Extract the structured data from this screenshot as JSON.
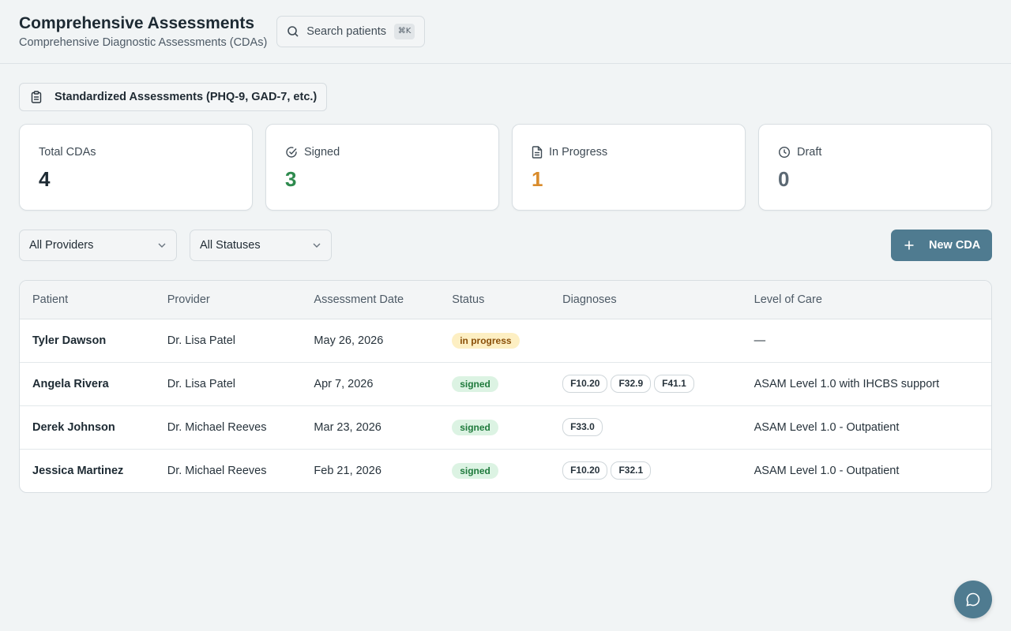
{
  "header": {
    "title": "Comprehensive Assessments",
    "subtitle": "Comprehensive Diagnostic Assessments (CDAs)",
    "search_placeholder": "Search patients",
    "search_shortcut": "⌘K"
  },
  "standardized_button": {
    "label": "Standardized Assessments (PHQ-9, GAD-7, etc.)"
  },
  "stats": [
    {
      "label": "Total CDAs",
      "value": "4",
      "color": "#1d2a33"
    },
    {
      "label": "Signed",
      "value": "3",
      "color": "#2e8a4e",
      "icon": "check-circle-icon"
    },
    {
      "label": "In Progress",
      "value": "1",
      "color": "#d98b2b",
      "icon": "document-icon"
    },
    {
      "label": "Draft",
      "value": "0",
      "color": "#5b6873",
      "icon": "clock-icon"
    }
  ],
  "filters": {
    "provider": "All Providers",
    "status": "All Statuses",
    "new_button": "New CDA"
  },
  "table": {
    "columns": [
      "Patient",
      "Provider",
      "Assessment Date",
      "Status",
      "Diagnoses",
      "Level of Care"
    ],
    "rows": [
      {
        "patient": "Tyler Dawson",
        "provider": "Dr. Lisa Patel",
        "date": "May 26, 2026",
        "status": "in progress",
        "diagnoses": [],
        "level": "—"
      },
      {
        "patient": "Angela Rivera",
        "provider": "Dr. Lisa Patel",
        "date": "Apr 7, 2026",
        "status": "signed",
        "diagnoses": [
          "F10.20",
          "F32.9",
          "F41.1"
        ],
        "level": "ASAM Level 1.0 with IHCBS support"
      },
      {
        "patient": "Derek Johnson",
        "provider": "Dr. Michael Reeves",
        "date": "Mar 23, 2026",
        "status": "signed",
        "diagnoses": [
          "F33.0"
        ],
        "level": "ASAM Level 1.0 - Outpatient"
      },
      {
        "patient": "Jessica Martinez",
        "provider": "Dr. Michael Reeves",
        "date": "Feb 21, 2026",
        "status": "signed",
        "diagnoses": [
          "F10.20",
          "F32.1"
        ],
        "level": "ASAM Level 1.0 - Outpatient"
      }
    ]
  },
  "colors": {
    "accent": "#4f7b90",
    "signed": "#2e8a4e",
    "in_progress": "#d98b2b"
  }
}
